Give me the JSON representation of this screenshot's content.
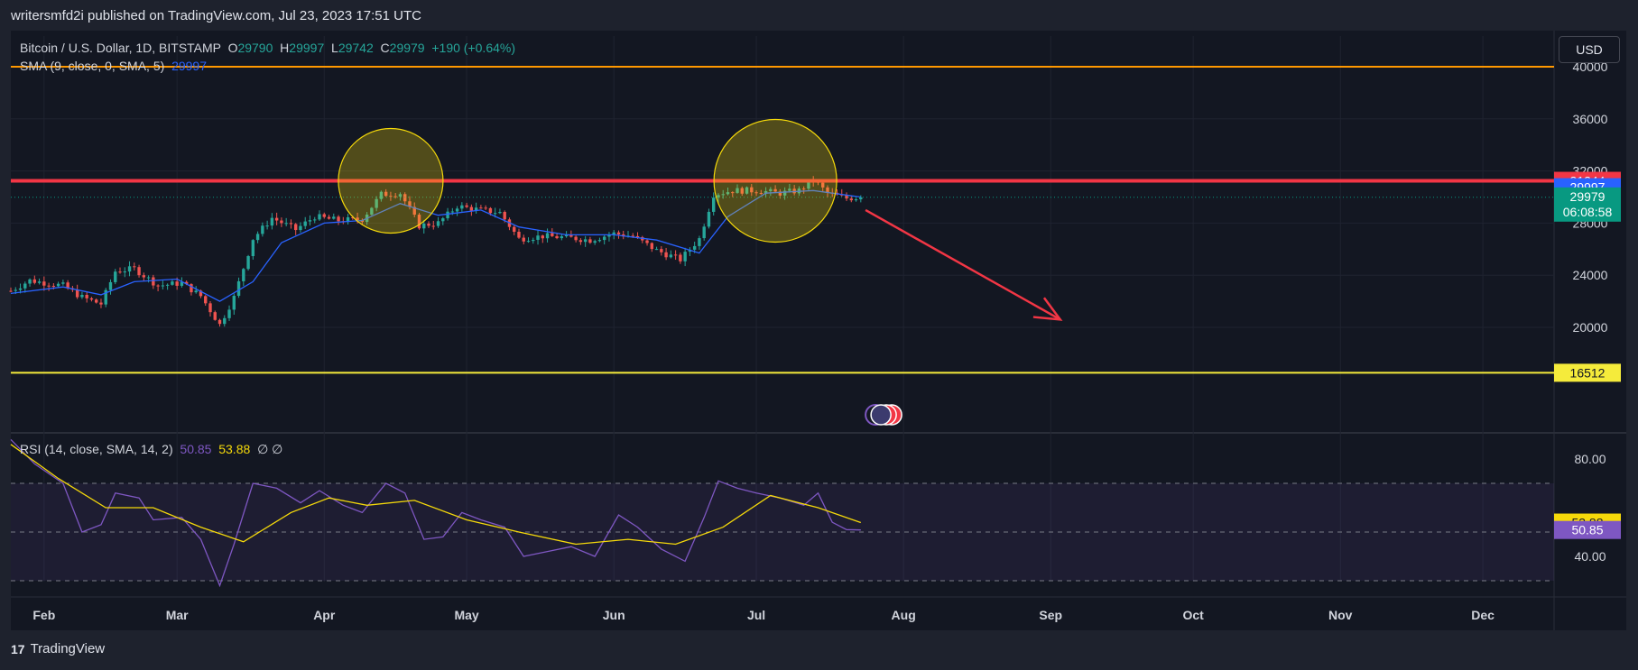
{
  "header": {
    "published": "writersmfd2i published on TradingView.com, Jul 23, 2023 17:51 UTC"
  },
  "footer": {
    "brand": "TradingView",
    "logo_glyph": "17"
  },
  "currency": {
    "label": "USD"
  },
  "legend": {
    "symbol": "Bitcoin / U.S. Dollar, 1D, BITSTAMP",
    "o_label": "O",
    "o_value": "29790",
    "h_label": "H",
    "h_value": "29997",
    "l_label": "L",
    "l_value": "29742",
    "c_label": "C",
    "c_value": "29979",
    "change": "+190 (+0.64%)",
    "sma_label": "SMA (9, close, 0, SMA, 5)",
    "sma_value": "29997",
    "rsi_label": "RSI (14, close, SMA, 14, 2)",
    "rsi_value": "50.85",
    "rsi_ma_value": "53.88",
    "rsi_extra": "∅ ∅"
  },
  "colors": {
    "up": "#26a69a",
    "down": "#ef5350",
    "sma": "#2962ff",
    "rsi": "#7e57c2",
    "rsi_ma": "#f5d90a",
    "resistance": "#f23645",
    "support": "#f5eb3b",
    "top_line": "#ff9800",
    "circle_fill": "#f5d90a"
  },
  "chart_data": {
    "type": "candlestick",
    "price_axis": {
      "min": 16000,
      "max": 40000,
      "ticks": [
        20000,
        24000,
        28000,
        32000,
        36000,
        40000
      ],
      "tick_labels": [
        "20000",
        "24000",
        "28000",
        "32000",
        "36000",
        "40000"
      ]
    },
    "time_axis": {
      "start": "2023-01-25",
      "end": "2023-12-16",
      "labels": [
        {
          "date": "2023-02-01",
          "label": "Feb"
        },
        {
          "date": "2023-03-01",
          "label": "Mar"
        },
        {
          "date": "2023-04-01",
          "label": "Apr"
        },
        {
          "date": "2023-05-01",
          "label": "May"
        },
        {
          "date": "2023-06-01",
          "label": "Jun"
        },
        {
          "date": "2023-07-01",
          "label": "Jul"
        },
        {
          "date": "2023-08-01",
          "label": "Aug"
        },
        {
          "date": "2023-09-01",
          "label": "Sep"
        },
        {
          "date": "2023-10-01",
          "label": "Oct"
        },
        {
          "date": "2023-11-01",
          "label": "Nov"
        },
        {
          "date": "2023-12-01",
          "label": "Dec"
        }
      ]
    },
    "close_path": [
      [
        "2023-01-25",
        22800
      ],
      [
        "2023-01-29",
        23600
      ],
      [
        "2023-02-05",
        23200
      ],
      [
        "2023-02-09",
        22300
      ],
      [
        "2023-02-13",
        21800
      ],
      [
        "2023-02-16",
        24300
      ],
      [
        "2023-02-20",
        24500
      ],
      [
        "2023-02-25",
        23200
      ],
      [
        "2023-03-02",
        23400
      ],
      [
        "2023-03-06",
        22400
      ],
      [
        "2023-03-10",
        20200
      ],
      [
        "2023-03-13",
        22300
      ],
      [
        "2023-03-17",
        26800
      ],
      [
        "2023-03-21",
        28400
      ],
      [
        "2023-03-26",
        27500
      ],
      [
        "2023-03-30",
        28500
      ],
      [
        "2023-04-04",
        28200
      ],
      [
        "2023-04-09",
        28300
      ],
      [
        "2023-04-13",
        30200
      ],
      [
        "2023-04-17",
        30300
      ],
      [
        "2023-04-21",
        27800
      ],
      [
        "2023-04-25",
        28000
      ],
      [
        "2023-04-29",
        29300
      ],
      [
        "2023-05-04",
        29000
      ],
      [
        "2023-05-08",
        28800
      ],
      [
        "2023-05-12",
        26800
      ],
      [
        "2023-05-17",
        27000
      ],
      [
        "2023-05-22",
        26900
      ],
      [
        "2023-05-27",
        26700
      ],
      [
        "2023-06-01",
        27200
      ],
      [
        "2023-06-05",
        27000
      ],
      [
        "2023-06-10",
        25900
      ],
      [
        "2023-06-15",
        25200
      ],
      [
        "2023-06-19",
        26800
      ],
      [
        "2023-06-22",
        30200
      ],
      [
        "2023-06-26",
        30500
      ],
      [
        "2023-07-01",
        30500
      ],
      [
        "2023-07-06",
        30300
      ],
      [
        "2023-07-10",
        30500
      ],
      [
        "2023-07-13",
        31300
      ],
      [
        "2023-07-16",
        30300
      ],
      [
        "2023-07-20",
        29900
      ],
      [
        "2023-07-23",
        29979
      ]
    ],
    "sma_path": [
      [
        "2023-01-25",
        22600
      ],
      [
        "2023-02-05",
        23100
      ],
      [
        "2023-02-13",
        22500
      ],
      [
        "2023-02-20",
        23500
      ],
      [
        "2023-03-01",
        23700
      ],
      [
        "2023-03-10",
        22000
      ],
      [
        "2023-03-17",
        23500
      ],
      [
        "2023-03-23",
        26500
      ],
      [
        "2023-04-01",
        28000
      ],
      [
        "2023-04-09",
        28200
      ],
      [
        "2023-04-17",
        29500
      ],
      [
        "2023-04-25",
        28600
      ],
      [
        "2023-05-04",
        29000
      ],
      [
        "2023-05-12",
        27700
      ],
      [
        "2023-05-22",
        27100
      ],
      [
        "2023-06-01",
        27100
      ],
      [
        "2023-06-10",
        26700
      ],
      [
        "2023-06-19",
        25700
      ],
      [
        "2023-06-25",
        28500
      ],
      [
        "2023-07-03",
        30300
      ],
      [
        "2023-07-13",
        30500
      ],
      [
        "2023-07-23",
        29997
      ]
    ],
    "levels": {
      "top": 40000,
      "resistance": 31244,
      "sma_last": 29997,
      "last_close": 29979,
      "support": 16512
    },
    "price_tags": [
      {
        "value": "31244",
        "level": 31244,
        "color": "#f23645",
        "text_color": "#ffffff"
      },
      {
        "value": "29997",
        "level": 29997,
        "color": "#2962ff",
        "text_color": "#ffffff"
      },
      {
        "value": "29979",
        "level": 29979,
        "color": "#089981",
        "text_color": "#ffffff",
        "countdown": "06:08:58"
      },
      {
        "value": "16512",
        "level": 16512,
        "color": "#f5eb3b",
        "text_color": "#131722"
      }
    ],
    "highlight_zones": [
      {
        "date": "2023-04-15",
        "price": 31244
      },
      {
        "date": "2023-07-05",
        "price": 31244
      }
    ],
    "projection_arrow": {
      "from": [
        "2023-07-24",
        29000
      ],
      "to": [
        "2023-09-03",
        20600
      ]
    },
    "rsi": {
      "range": [
        25,
        90
      ],
      "ticks": [
        40,
        80
      ],
      "tick_labels": [
        "40.00",
        "80.00"
      ],
      "band": [
        30,
        70
      ],
      "mid": 50,
      "last": 50.85,
      "last_ma": 53.88,
      "path": [
        [
          "2023-01-25",
          88
        ],
        [
          "2023-01-30",
          78
        ],
        [
          "2023-02-05",
          70
        ],
        [
          "2023-02-09",
          50
        ],
        [
          "2023-02-13",
          53
        ],
        [
          "2023-02-16",
          66
        ],
        [
          "2023-02-21",
          64
        ],
        [
          "2023-02-24",
          55
        ],
        [
          "2023-03-02",
          56
        ],
        [
          "2023-03-06",
          47
        ],
        [
          "2023-03-10",
          28
        ],
        [
          "2023-03-13",
          45
        ],
        [
          "2023-03-17",
          70
        ],
        [
          "2023-03-22",
          68
        ],
        [
          "2023-03-27",
          62
        ],
        [
          "2023-03-31",
          67
        ],
        [
          "2023-04-05",
          61
        ],
        [
          "2023-04-09",
          58
        ],
        [
          "2023-04-14",
          70
        ],
        [
          "2023-04-18",
          66
        ],
        [
          "2023-04-22",
          47
        ],
        [
          "2023-04-26",
          48
        ],
        [
          "2023-04-30",
          58
        ],
        [
          "2023-05-04",
          55
        ],
        [
          "2023-05-09",
          52
        ],
        [
          "2023-05-13",
          40
        ],
        [
          "2023-05-18",
          42
        ],
        [
          "2023-05-23",
          44
        ],
        [
          "2023-05-28",
          40
        ],
        [
          "2023-06-02",
          57
        ],
        [
          "2023-06-06",
          52
        ],
        [
          "2023-06-11",
          43
        ],
        [
          "2023-06-16",
          38
        ],
        [
          "2023-06-20",
          56
        ],
        [
          "2023-06-23",
          71
        ],
        [
          "2023-06-27",
          68
        ],
        [
          "2023-07-01",
          66
        ],
        [
          "2023-07-06",
          64
        ],
        [
          "2023-07-11",
          61
        ],
        [
          "2023-07-14",
          66
        ],
        [
          "2023-07-17",
          54
        ],
        [
          "2023-07-20",
          51
        ],
        [
          "2023-07-23",
          50.85
        ]
      ],
      "ma_path": [
        [
          "2023-01-25",
          86
        ],
        [
          "2023-02-04",
          72
        ],
        [
          "2023-02-14",
          60
        ],
        [
          "2023-02-24",
          60
        ],
        [
          "2023-03-06",
          52
        ],
        [
          "2023-03-15",
          46
        ],
        [
          "2023-03-25",
          58
        ],
        [
          "2023-04-02",
          64
        ],
        [
          "2023-04-10",
          61
        ],
        [
          "2023-04-20",
          63
        ],
        [
          "2023-05-01",
          55
        ],
        [
          "2023-05-12",
          50
        ],
        [
          "2023-05-24",
          45
        ],
        [
          "2023-06-04",
          47
        ],
        [
          "2023-06-14",
          45
        ],
        [
          "2023-06-24",
          52
        ],
        [
          "2023-07-04",
          65
        ],
        [
          "2023-07-14",
          60
        ],
        [
          "2023-07-23",
          53.88
        ]
      ]
    }
  }
}
